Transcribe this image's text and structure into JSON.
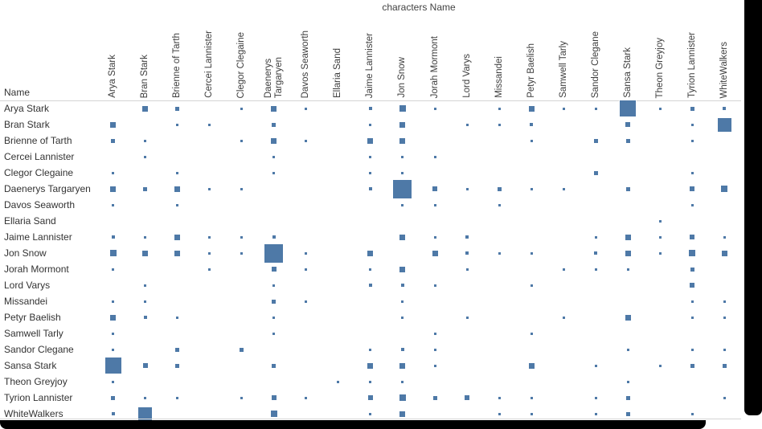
{
  "title": "characters Name",
  "row_axis_header": "Name",
  "colors": {
    "mark": "#4e79a7",
    "text": "#333333",
    "grid_line": "#d4d4d4",
    "frame": "#000000"
  },
  "chart_data": {
    "type": "heatmap",
    "subtype": "size-encoded co-occurrence matrix",
    "title": "characters Name",
    "row_header": "Name",
    "legend": "none",
    "grid": "off",
    "symmetric": true,
    "characters": [
      "Arya Stark",
      "Bran Stark",
      "Brienne of Tarth",
      "Cercei Lannister",
      "Clegor Clegaine",
      "Daenerys Targaryen",
      "Davos Seaworth",
      "Ellaria Sand",
      "Jaime Lannister",
      "Jon Snow",
      "Jorah Mormont",
      "Lord Varys",
      "Missandei",
      "Petyr Baelish",
      "Samwell Tarly",
      "Sandor Clegane",
      "Sansa Stark",
      "Theon Greyjoy",
      "Tyrion Lannister",
      "WhiteWalkers"
    ],
    "column_labels": [
      "Arya Stark",
      "Bran Stark",
      "Brienne of Tarth",
      "Cercei Lannister",
      "Clegor Clegaine",
      "Daenerys\nTargaryen",
      "Davos Seaworth",
      "Ellaria Sand",
      "Jaime Lannister",
      "Jon Snow",
      "Jorah Mormont",
      "Lord Varys",
      "Missandei",
      "Petyr Baelish",
      "Samwell Tarly",
      "Sandor Clegane",
      "Sansa Stark",
      "Theon Greyjoy",
      "Tyrion Lannister",
      "WhiteWalkers"
    ],
    "size_unit": "mark edge length in px as rendered",
    "pairs": [
      [
        "Arya Stark",
        "Bran Stark",
        7
      ],
      [
        "Arya Stark",
        "Brienne of Tarth",
        5
      ],
      [
        "Arya Stark",
        "Clegor Clegaine",
        3
      ],
      [
        "Arya Stark",
        "Daenerys Targaryen",
        7
      ],
      [
        "Arya Stark",
        "Davos Seaworth",
        3
      ],
      [
        "Arya Stark",
        "Jaime Lannister",
        4
      ],
      [
        "Arya Stark",
        "Jon Snow",
        8
      ],
      [
        "Arya Stark",
        "Jorah Mormont",
        3
      ],
      [
        "Arya Stark",
        "Missandei",
        3
      ],
      [
        "Arya Stark",
        "Petyr Baelish",
        7
      ],
      [
        "Arya Stark",
        "Samwell Tarly",
        3
      ],
      [
        "Arya Stark",
        "Sandor Clegane",
        3
      ],
      [
        "Arya Stark",
        "Sansa Stark",
        20
      ],
      [
        "Arya Stark",
        "Theon Greyjoy",
        3
      ],
      [
        "Arya Stark",
        "Tyrion Lannister",
        5
      ],
      [
        "Arya Stark",
        "WhiteWalkers",
        4
      ],
      [
        "Bran Stark",
        "Brienne of Tarth",
        3
      ],
      [
        "Bran Stark",
        "Cercei Lannister",
        3
      ],
      [
        "Bran Stark",
        "Daenerys Targaryen",
        5
      ],
      [
        "Bran Stark",
        "Jaime Lannister",
        3
      ],
      [
        "Bran Stark",
        "Jon Snow",
        7
      ],
      [
        "Bran Stark",
        "Lord Varys",
        3
      ],
      [
        "Bran Stark",
        "Missandei",
        3
      ],
      [
        "Bran Stark",
        "Petyr Baelish",
        4
      ],
      [
        "Bran Stark",
        "Sansa Stark",
        6
      ],
      [
        "Bran Stark",
        "Tyrion Lannister",
        3
      ],
      [
        "Bran Stark",
        "WhiteWalkers",
        17
      ],
      [
        "Brienne of Tarth",
        "Clegor Clegaine",
        3
      ],
      [
        "Brienne of Tarth",
        "Daenerys Targaryen",
        7
      ],
      [
        "Brienne of Tarth",
        "Davos Seaworth",
        3
      ],
      [
        "Brienne of Tarth",
        "Jaime Lannister",
        7
      ],
      [
        "Brienne of Tarth",
        "Jon Snow",
        7
      ],
      [
        "Brienne of Tarth",
        "Petyr Baelish",
        3
      ],
      [
        "Brienne of Tarth",
        "Sandor Clegane",
        5
      ],
      [
        "Brienne of Tarth",
        "Sansa Stark",
        5
      ],
      [
        "Brienne of Tarth",
        "Tyrion Lannister",
        3
      ],
      [
        "Cercei Lannister",
        "Daenerys Targaryen",
        3
      ],
      [
        "Cercei Lannister",
        "Jaime Lannister",
        3
      ],
      [
        "Cercei Lannister",
        "Jon Snow",
        3
      ],
      [
        "Cercei Lannister",
        "Jorah Mormont",
        3
      ],
      [
        "Clegor Clegaine",
        "Daenerys Targaryen",
        3
      ],
      [
        "Clegor Clegaine",
        "Jaime Lannister",
        3
      ],
      [
        "Clegor Clegaine",
        "Jon Snow",
        3
      ],
      [
        "Clegor Clegaine",
        "Sandor Clegane",
        5
      ],
      [
        "Clegor Clegaine",
        "Tyrion Lannister",
        3
      ],
      [
        "Daenerys Targaryen",
        "Jaime Lannister",
        4
      ],
      [
        "Daenerys Targaryen",
        "Jon Snow",
        23
      ],
      [
        "Daenerys Targaryen",
        "Jorah Mormont",
        6
      ],
      [
        "Daenerys Targaryen",
        "Lord Varys",
        3
      ],
      [
        "Daenerys Targaryen",
        "Missandei",
        5
      ],
      [
        "Daenerys Targaryen",
        "Petyr Baelish",
        3
      ],
      [
        "Daenerys Targaryen",
        "Samwell Tarly",
        3
      ],
      [
        "Daenerys Targaryen",
        "Sansa Stark",
        5
      ],
      [
        "Daenerys Targaryen",
        "Tyrion Lannister",
        6
      ],
      [
        "Daenerys Targaryen",
        "WhiteWalkers",
        8
      ],
      [
        "Davos Seaworth",
        "Jon Snow",
        3
      ],
      [
        "Davos Seaworth",
        "Jorah Mormont",
        3
      ],
      [
        "Davos Seaworth",
        "Missandei",
        3
      ],
      [
        "Davos Seaworth",
        "Tyrion Lannister",
        3
      ],
      [
        "Ellaria Sand",
        "Theon Greyjoy",
        3
      ],
      [
        "Jaime Lannister",
        "Jon Snow",
        7
      ],
      [
        "Jaime Lannister",
        "Jorah Mormont",
        3
      ],
      [
        "Jaime Lannister",
        "Lord Varys",
        4
      ],
      [
        "Jaime Lannister",
        "Sandor Clegane",
        3
      ],
      [
        "Jaime Lannister",
        "Sansa Stark",
        7
      ],
      [
        "Jaime Lannister",
        "Theon Greyjoy",
        3
      ],
      [
        "Jaime Lannister",
        "Tyrion Lannister",
        6
      ],
      [
        "Jaime Lannister",
        "WhiteWalkers",
        3
      ],
      [
        "Jon Snow",
        "Jorah Mormont",
        7
      ],
      [
        "Jon Snow",
        "Lord Varys",
        4
      ],
      [
        "Jon Snow",
        "Missandei",
        3
      ],
      [
        "Jon Snow",
        "Petyr Baelish",
        3
      ],
      [
        "Jon Snow",
        "Sandor Clegane",
        4
      ],
      [
        "Jon Snow",
        "Sansa Stark",
        7
      ],
      [
        "Jon Snow",
        "Theon Greyjoy",
        3
      ],
      [
        "Jon Snow",
        "Tyrion Lannister",
        8
      ],
      [
        "Jon Snow",
        "WhiteWalkers",
        7
      ],
      [
        "Jorah Mormont",
        "Lord Varys",
        3
      ],
      [
        "Jorah Mormont",
        "Samwell Tarly",
        3
      ],
      [
        "Jorah Mormont",
        "Sandor Clegane",
        3
      ],
      [
        "Jorah Mormont",
        "Sansa Stark",
        3
      ],
      [
        "Jorah Mormont",
        "Tyrion Lannister",
        5
      ],
      [
        "Lord Varys",
        "Petyr Baelish",
        3
      ],
      [
        "Lord Varys",
        "Tyrion Lannister",
        6
      ],
      [
        "Missandei",
        "Tyrion Lannister",
        3
      ],
      [
        "Missandei",
        "WhiteWalkers",
        3
      ],
      [
        "Petyr Baelish",
        "Samwell Tarly",
        3
      ],
      [
        "Petyr Baelish",
        "Sansa Stark",
        7
      ],
      [
        "Petyr Baelish",
        "Tyrion Lannister",
        3
      ],
      [
        "Petyr Baelish",
        "WhiteWalkers",
        3
      ],
      [
        "Sandor Clegane",
        "Sansa Stark",
        3
      ],
      [
        "Sandor Clegane",
        "Tyrion Lannister",
        3
      ],
      [
        "Sandor Clegane",
        "WhiteWalkers",
        3
      ],
      [
        "Sansa Stark",
        "Theon Greyjoy",
        3
      ],
      [
        "Sansa Stark",
        "Tyrion Lannister",
        5
      ],
      [
        "Sansa Stark",
        "WhiteWalkers",
        5
      ],
      [
        "Tyrion Lannister",
        "WhiteWalkers",
        3
      ]
    ]
  }
}
